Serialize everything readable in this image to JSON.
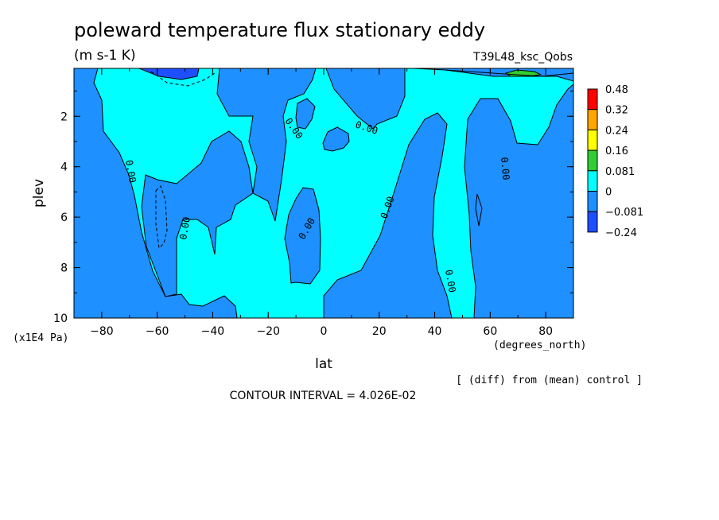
{
  "chart_data": {
    "type": "heatmap",
    "title": "poleward temperature flux stationary eddy",
    "units": "(m s-1 K)",
    "run_label": "T39L48_ksc_Qobs",
    "xlabel": "lat",
    "x_units": "(degrees_north)",
    "ylabel": "plev",
    "y_units": "(x1E4 Pa)",
    "xlim": [
      -90,
      90
    ],
    "ylim": [
      10,
      0.1
    ],
    "x_ticks": [
      -80,
      -60,
      -40,
      -20,
      0,
      20,
      40,
      60,
      80
    ],
    "y_ticks": [
      2,
      4,
      6,
      8,
      10
    ],
    "contour_interval_text": "CONTOUR INTERVAL = 4.026E-02",
    "note": "[ (diff) from (mean) control ]",
    "contour_label": "0.00",
    "colorbar": {
      "labels": [
        "0.48",
        "0.32",
        "0.24",
        "0.16",
        "0.081",
        "0",
        "−0.081",
        "−0.24"
      ],
      "colors": [
        "#ff0000",
        "#ffa500",
        "#ffff00",
        "#32cd32",
        "#00ffff",
        "#1e90ff",
        "#1e4fff"
      ]
    },
    "fill_colors": {
      "background": "#00ffff",
      "negative": "#1e90ff",
      "strong_negative": "#1e4fff",
      "positive": "#32cd32"
    }
  }
}
